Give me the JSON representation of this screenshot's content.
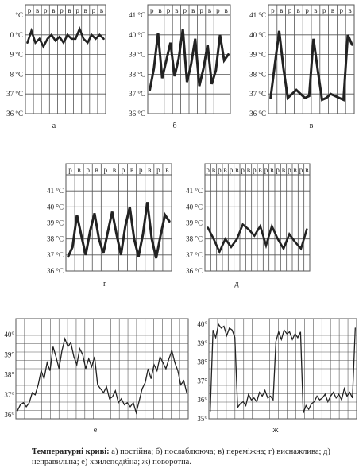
{
  "caption": {
    "title": "Температурні криві:",
    "text": "а) постійна; б) послаблююча; в) переміжна; г) виснажлива; д) неправильна; е) хвилеподібна; ж) поворотна."
  },
  "colors": {
    "grid": "#555555",
    "line": "#222222",
    "paper": "#ffffff"
  },
  "chart_data": [
    {
      "id": "a",
      "type": "line",
      "label": "а",
      "col_labels": [
        "р",
        "в",
        "р",
        "в",
        "р",
        "в",
        "р",
        "в",
        "р",
        "в"
      ],
      "y_tick_labels": [
        "°C",
        "0 °C",
        "9 °C",
        "8 °C",
        "37 °C",
        "36 °C"
      ],
      "ylim": [
        36,
        41
      ],
      "x": [
        0,
        1,
        2,
        3,
        4,
        5,
        6,
        7,
        8,
        9,
        10,
        11,
        12,
        13,
        14,
        15,
        16,
        17,
        18,
        19
      ],
      "values": [
        39.6,
        40.2,
        39.6,
        39.8,
        39.4,
        39.8,
        40.0,
        39.7,
        39.9,
        39.6,
        40.0,
        39.8,
        39.8,
        40.3,
        39.8,
        39.6,
        40.0,
        39.8,
        40.0,
        39.8
      ]
    },
    {
      "id": "b",
      "type": "line",
      "label": "б",
      "col_labels": [
        "р",
        "в",
        "р",
        "в",
        "р",
        "в",
        "р",
        "в",
        "р",
        "в"
      ],
      "y_tick_labels": [
        "41 °C",
        "40 °C",
        "39 °C",
        "38 °C",
        "37 °C",
        "36 °C"
      ],
      "ylim": [
        36,
        41
      ],
      "x": [
        0,
        1,
        2,
        3,
        4,
        5,
        6,
        7,
        8,
        9,
        10,
        11,
        12,
        13,
        14,
        15,
        16,
        17,
        18,
        19
      ],
      "values": [
        37.2,
        38.3,
        40.1,
        37.8,
        38.7,
        39.6,
        37.9,
        38.8,
        40.3,
        37.6,
        38.5,
        39.8,
        37.4,
        38.3,
        39.5,
        37.5,
        38.2,
        40.0,
        38.7,
        39.0
      ]
    },
    {
      "id": "v",
      "type": "line",
      "label": "в",
      "col_labels": [
        "р",
        "в",
        "р",
        "в",
        "р",
        "в",
        "р",
        "в",
        "р",
        "в"
      ],
      "y_tick_labels": [
        "41 °C",
        "40 °C",
        "39 °C",
        "38 °C",
        "37 °C",
        "36 °C"
      ],
      "ylim": [
        36,
        41
      ],
      "x": [
        0,
        1,
        2,
        3,
        4,
        5,
        6,
        7,
        8,
        9,
        10,
        11,
        12,
        13,
        14,
        15,
        16,
        17,
        18,
        19
      ],
      "values": [
        36.8,
        38.5,
        40.2,
        38.3,
        36.8,
        37.0,
        37.2,
        37.0,
        36.8,
        36.9,
        39.8,
        38.2,
        36.7,
        36.8,
        37.0,
        36.9,
        36.8,
        36.7,
        40.0,
        39.5
      ]
    },
    {
      "id": "g",
      "type": "line",
      "label": "г",
      "col_labels": [
        "р",
        "в",
        "р",
        "в",
        "р",
        "в",
        "р",
        "в",
        "р",
        "в",
        "р",
        "в"
      ],
      "y_tick_labels": [
        "41 °C",
        "40 °C",
        "39 °C",
        "38 °C",
        "37 °C",
        "36 °C"
      ],
      "ylim": [
        36,
        42
      ],
      "x": [
        0,
        1,
        2,
        3,
        4,
        5,
        6,
        7,
        8,
        9,
        10,
        11,
        12,
        13,
        14,
        15,
        16,
        17,
        18,
        19,
        20,
        21,
        22,
        23
      ],
      "values": [
        36.9,
        37.5,
        39.5,
        38.2,
        37.0,
        38.5,
        39.6,
        38.0,
        37.1,
        38.4,
        39.7,
        38.3,
        37.0,
        38.8,
        40.0,
        38.0,
        36.9,
        38.3,
        40.3,
        38.0,
        36.8,
        38.2,
        39.5,
        39.1
      ]
    },
    {
      "id": "d",
      "type": "line",
      "label": "д",
      "col_labels": [
        "р",
        "в",
        "р",
        "в",
        "р",
        "в",
        "р",
        "в",
        "р",
        "в",
        "р",
        "в",
        "р",
        "в",
        "р",
        "в",
        "р",
        "в"
      ],
      "y_tick_labels": [
        "41 °C",
        "40 °C",
        "39 °C",
        "38 °C",
        "37 °C",
        "36 °C"
      ],
      "ylim": [
        36,
        42
      ],
      "x": [
        0,
        1,
        2,
        3,
        4,
        5,
        6,
        7,
        8,
        9,
        10,
        11,
        12,
        13,
        14,
        15,
        16,
        17
      ],
      "values": [
        38.7,
        38.0,
        37.2,
        38.0,
        37.5,
        38.0,
        38.9,
        38.6,
        38.2,
        38.8,
        37.6,
        38.8,
        38.0,
        37.4,
        38.3,
        37.8,
        37.4,
        38.6
      ]
    },
    {
      "id": "e",
      "type": "line",
      "label": "е",
      "y_tick_labels": [
        "40°",
        "39°",
        "38°",
        "37°",
        "36°"
      ],
      "ylim": [
        35.8,
        40.8
      ],
      "x": [
        0,
        1,
        2,
        3,
        4,
        5,
        6,
        7,
        8,
        9,
        10,
        11,
        12,
        13,
        14,
        15,
        16,
        17,
        18,
        19,
        20,
        21,
        22,
        23,
        24,
        25,
        26,
        27,
        28,
        29,
        30,
        31,
        32,
        33,
        34,
        35,
        36,
        37,
        38,
        39,
        40,
        41,
        42,
        43,
        44,
        45,
        46,
        47,
        48,
        49,
        50,
        51,
        52,
        53,
        54,
        55,
        56,
        57
      ],
      "values": [
        36.2,
        36.5,
        36.6,
        36.4,
        36.6,
        37.1,
        37.0,
        37.5,
        38.2,
        37.8,
        38.6,
        38.2,
        39.4,
        38.9,
        38.3,
        39.2,
        39.8,
        39.4,
        39.6,
        38.9,
        38.5,
        39.3,
        39.0,
        38.3,
        38.8,
        38.4,
        38.9,
        37.5,
        37.3,
        37.1,
        37.4,
        36.8,
        36.9,
        37.2,
        36.6,
        36.8,
        36.5,
        36.6,
        36.4,
        36.6,
        36.1,
        36.7,
        37.3,
        37.6,
        38.3,
        37.8,
        38.5,
        38.2,
        38.9,
        38.6,
        38.3,
        38.8,
        39.2,
        38.6,
        38.2,
        37.5,
        37.7,
        37.1
      ]
    },
    {
      "id": "zh",
      "type": "line",
      "label": "ж",
      "y_tick_labels": [
        "40°",
        "39°",
        "38°",
        "37°",
        "36°",
        "35°"
      ],
      "ylim": [
        35,
        40.3
      ],
      "x": [
        0,
        1,
        2,
        3,
        4,
        5,
        6,
        7,
        8,
        9,
        10,
        11,
        12,
        13,
        14,
        15,
        16,
        17,
        18,
        19,
        20,
        21,
        22,
        23,
        24,
        25,
        26,
        27,
        28,
        29,
        30,
        31,
        32,
        33,
        34,
        35,
        36,
        37,
        38,
        39,
        40,
        41,
        42,
        43,
        44,
        45,
        46,
        47,
        48,
        49,
        50,
        51,
        52,
        53
      ],
      "values": [
        35.4,
        39.7,
        39.3,
        40.0,
        39.8,
        39.9,
        39.4,
        39.8,
        39.7,
        39.3,
        35.6,
        35.8,
        35.9,
        35.7,
        36.3,
        36.0,
        36.1,
        35.9,
        36.4,
        36.2,
        36.5,
        36.1,
        36.2,
        36.0,
        39.1,
        39.6,
        39.2,
        39.7,
        39.5,
        39.6,
        39.2,
        39.5,
        39.3,
        39.6,
        35.3,
        35.7,
        35.5,
        35.8,
        35.9,
        36.2,
        36.0,
        36.1,
        36.3,
        35.9,
        36.2,
        36.4,
        36.1,
        36.3,
        36.0,
        36.6,
        36.2,
        36.4,
        36.1,
        39.8
      ]
    }
  ]
}
